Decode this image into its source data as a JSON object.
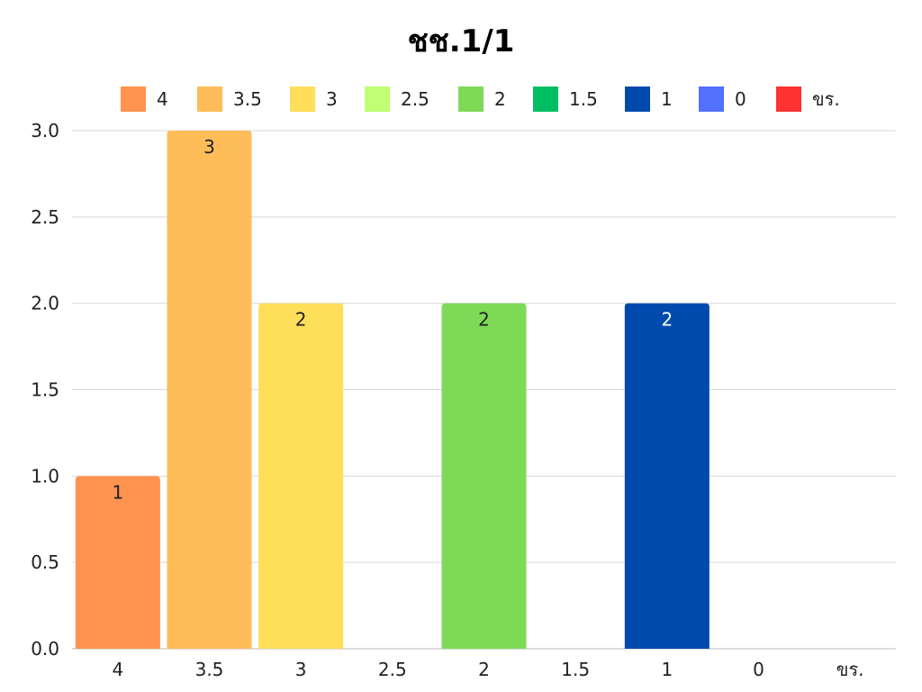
{
  "chart_data": {
    "type": "bar",
    "title": "ชช.1/1",
    "categories": [
      "4",
      "3.5",
      "3",
      "2.5",
      "2",
      "1.5",
      "1",
      "0",
      "ขร."
    ],
    "values": [
      1,
      3,
      2,
      0,
      2,
      0,
      2,
      0,
      0
    ],
    "colors": [
      "#ff9350",
      "#ffbd59",
      "#ffde59",
      "#c1ff72",
      "#7ed957",
      "#00bf63",
      "#004aad",
      "#5271ff",
      "#ff3131"
    ],
    "data_label_colors": [
      "#222222",
      "#222222",
      "#222222",
      "#222222",
      "#222222",
      "#222222",
      "#ffffff",
      "#222222",
      "#222222"
    ],
    "ylim": [
      0,
      3
    ],
    "yticks": [
      "0.0",
      "0.5",
      "1.0",
      "1.5",
      "2.0",
      "2.5",
      "3.0"
    ],
    "xlabel": "",
    "ylabel": "",
    "legend_position": "top",
    "grid": true
  }
}
